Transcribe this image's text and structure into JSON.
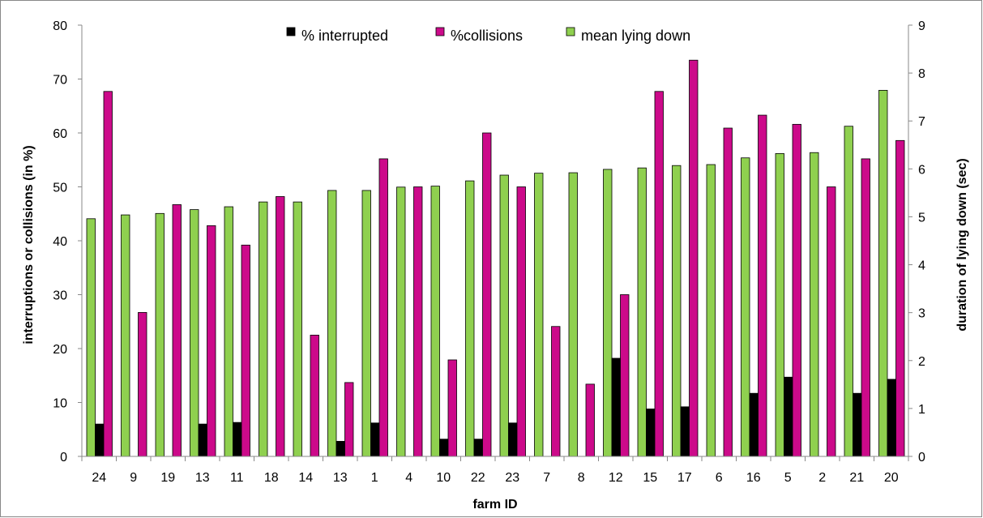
{
  "chart_data": {
    "type": "bar",
    "xlabel": "farm ID",
    "ylabel": "interruptions or collisions (in %)",
    "y2label": "duration of lying down (sec)",
    "ylim": [
      0,
      80
    ],
    "y2lim": [
      0,
      9
    ],
    "yticks": [
      0,
      10,
      20,
      30,
      40,
      50,
      60,
      70,
      80
    ],
    "y2ticks": [
      0,
      1,
      2,
      3,
      4,
      5,
      6,
      7,
      8,
      9
    ],
    "grid": false,
    "legend_position": "top-center",
    "categories": [
      "24",
      "9",
      "19",
      "13",
      "11",
      "18",
      "14",
      "13",
      "1",
      "4",
      "10",
      "22",
      "23",
      "7",
      "8",
      "12",
      "15",
      "17",
      "6",
      "16",
      "5",
      "2",
      "21",
      "20"
    ],
    "series": [
      {
        "name": "% interrupted",
        "axis": "left",
        "color": "#000000",
        "values": [
          6.0,
          0,
          0,
          6.0,
          6.3,
          0,
          0,
          2.8,
          6.2,
          0,
          3.2,
          3.2,
          6.2,
          0,
          0,
          18.2,
          8.8,
          9.2,
          0,
          11.7,
          14.7,
          0,
          11.7,
          14.3
        ]
      },
      {
        "name": "%collisions",
        "axis": "left",
        "color": "#cc0a8a",
        "values": [
          67.7,
          26.7,
          46.7,
          42.8,
          39.2,
          48.2,
          22.5,
          13.7,
          55.2,
          50.0,
          17.9,
          60.0,
          50.0,
          24.1,
          13.4,
          30.0,
          67.7,
          73.5,
          60.9,
          63.3,
          61.6,
          50.0,
          55.2,
          58.6
        ]
      },
      {
        "name": "mean lying down",
        "axis": "right",
        "color": "#8fd04f",
        "values": [
          4.96,
          5.04,
          5.07,
          5.15,
          5.21,
          5.31,
          5.31,
          5.55,
          5.55,
          5.62,
          5.64,
          5.75,
          5.87,
          5.91,
          5.92,
          5.99,
          6.02,
          6.07,
          6.09,
          6.23,
          6.32,
          6.34,
          6.89,
          7.64
        ]
      }
    ]
  }
}
